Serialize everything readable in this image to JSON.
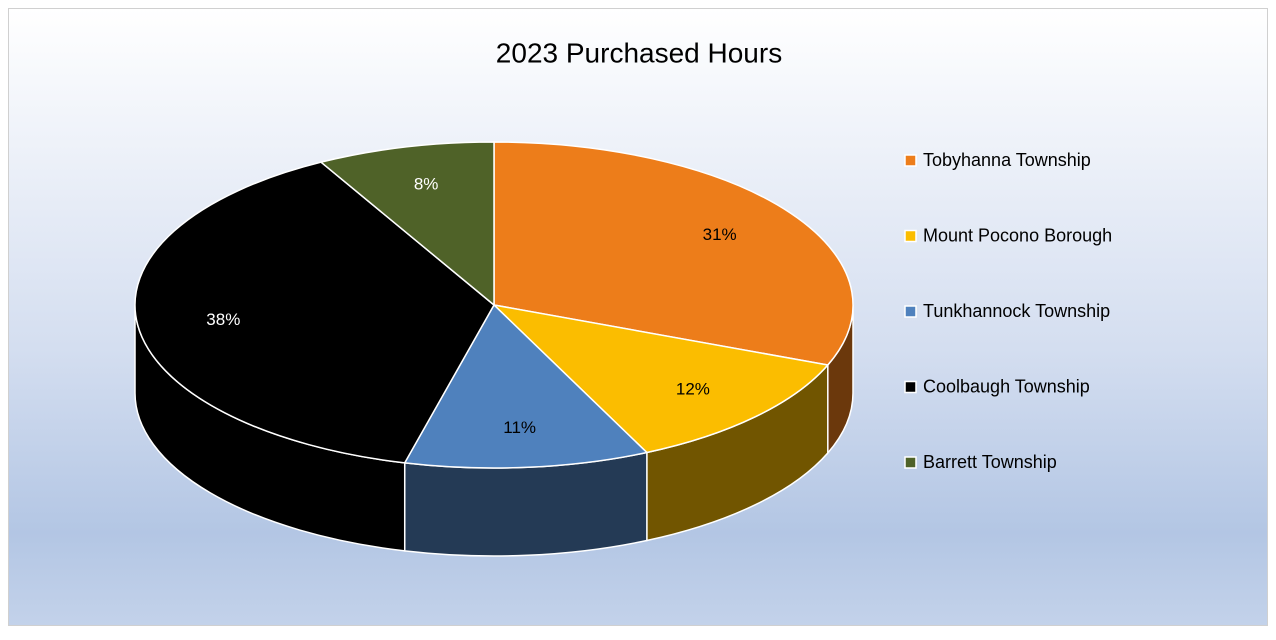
{
  "chart_data": {
    "type": "pie3d",
    "title": "2023 Purchased Hours",
    "categories": [
      "Tobyhanna Township",
      "Mount Pocono Borough",
      "Tunkhannock Township",
      "Coolbaugh Township",
      "Barrett Township"
    ],
    "values": [
      31,
      12,
      11,
      38,
      8
    ],
    "value_labels": [
      "31%",
      "12%",
      "11%",
      "38%",
      "8%"
    ],
    "colors": [
      "#ed7d1a",
      "#fbbd00",
      "#4f81bd",
      "#000000",
      "#4f6228"
    ],
    "legend": "right"
  }
}
